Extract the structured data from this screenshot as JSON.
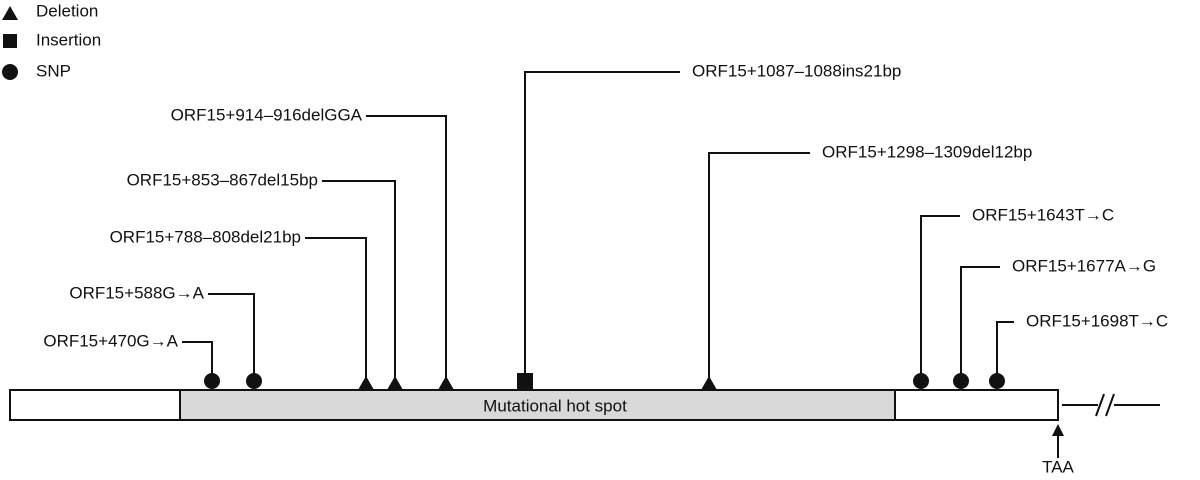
{
  "legend": [
    "Deletion",
    "Insertion",
    "SNP"
  ],
  "variants": [
    "ORF15+470G→A",
    "ORF15+588G→A",
    "ORF15+788–808del21bp",
    "ORF15+853–867del15bp",
    "ORF15+914–916delGGA",
    "ORF15+1087–1088ins21bp",
    "ORF15+1298–1309del12bp",
    "ORF15+1643T→C",
    "ORF15+1677A→G",
    "ORF15+1698T→C"
  ],
  "region_label": "Mutational hot spot",
  "stop_codon": "TAA"
}
